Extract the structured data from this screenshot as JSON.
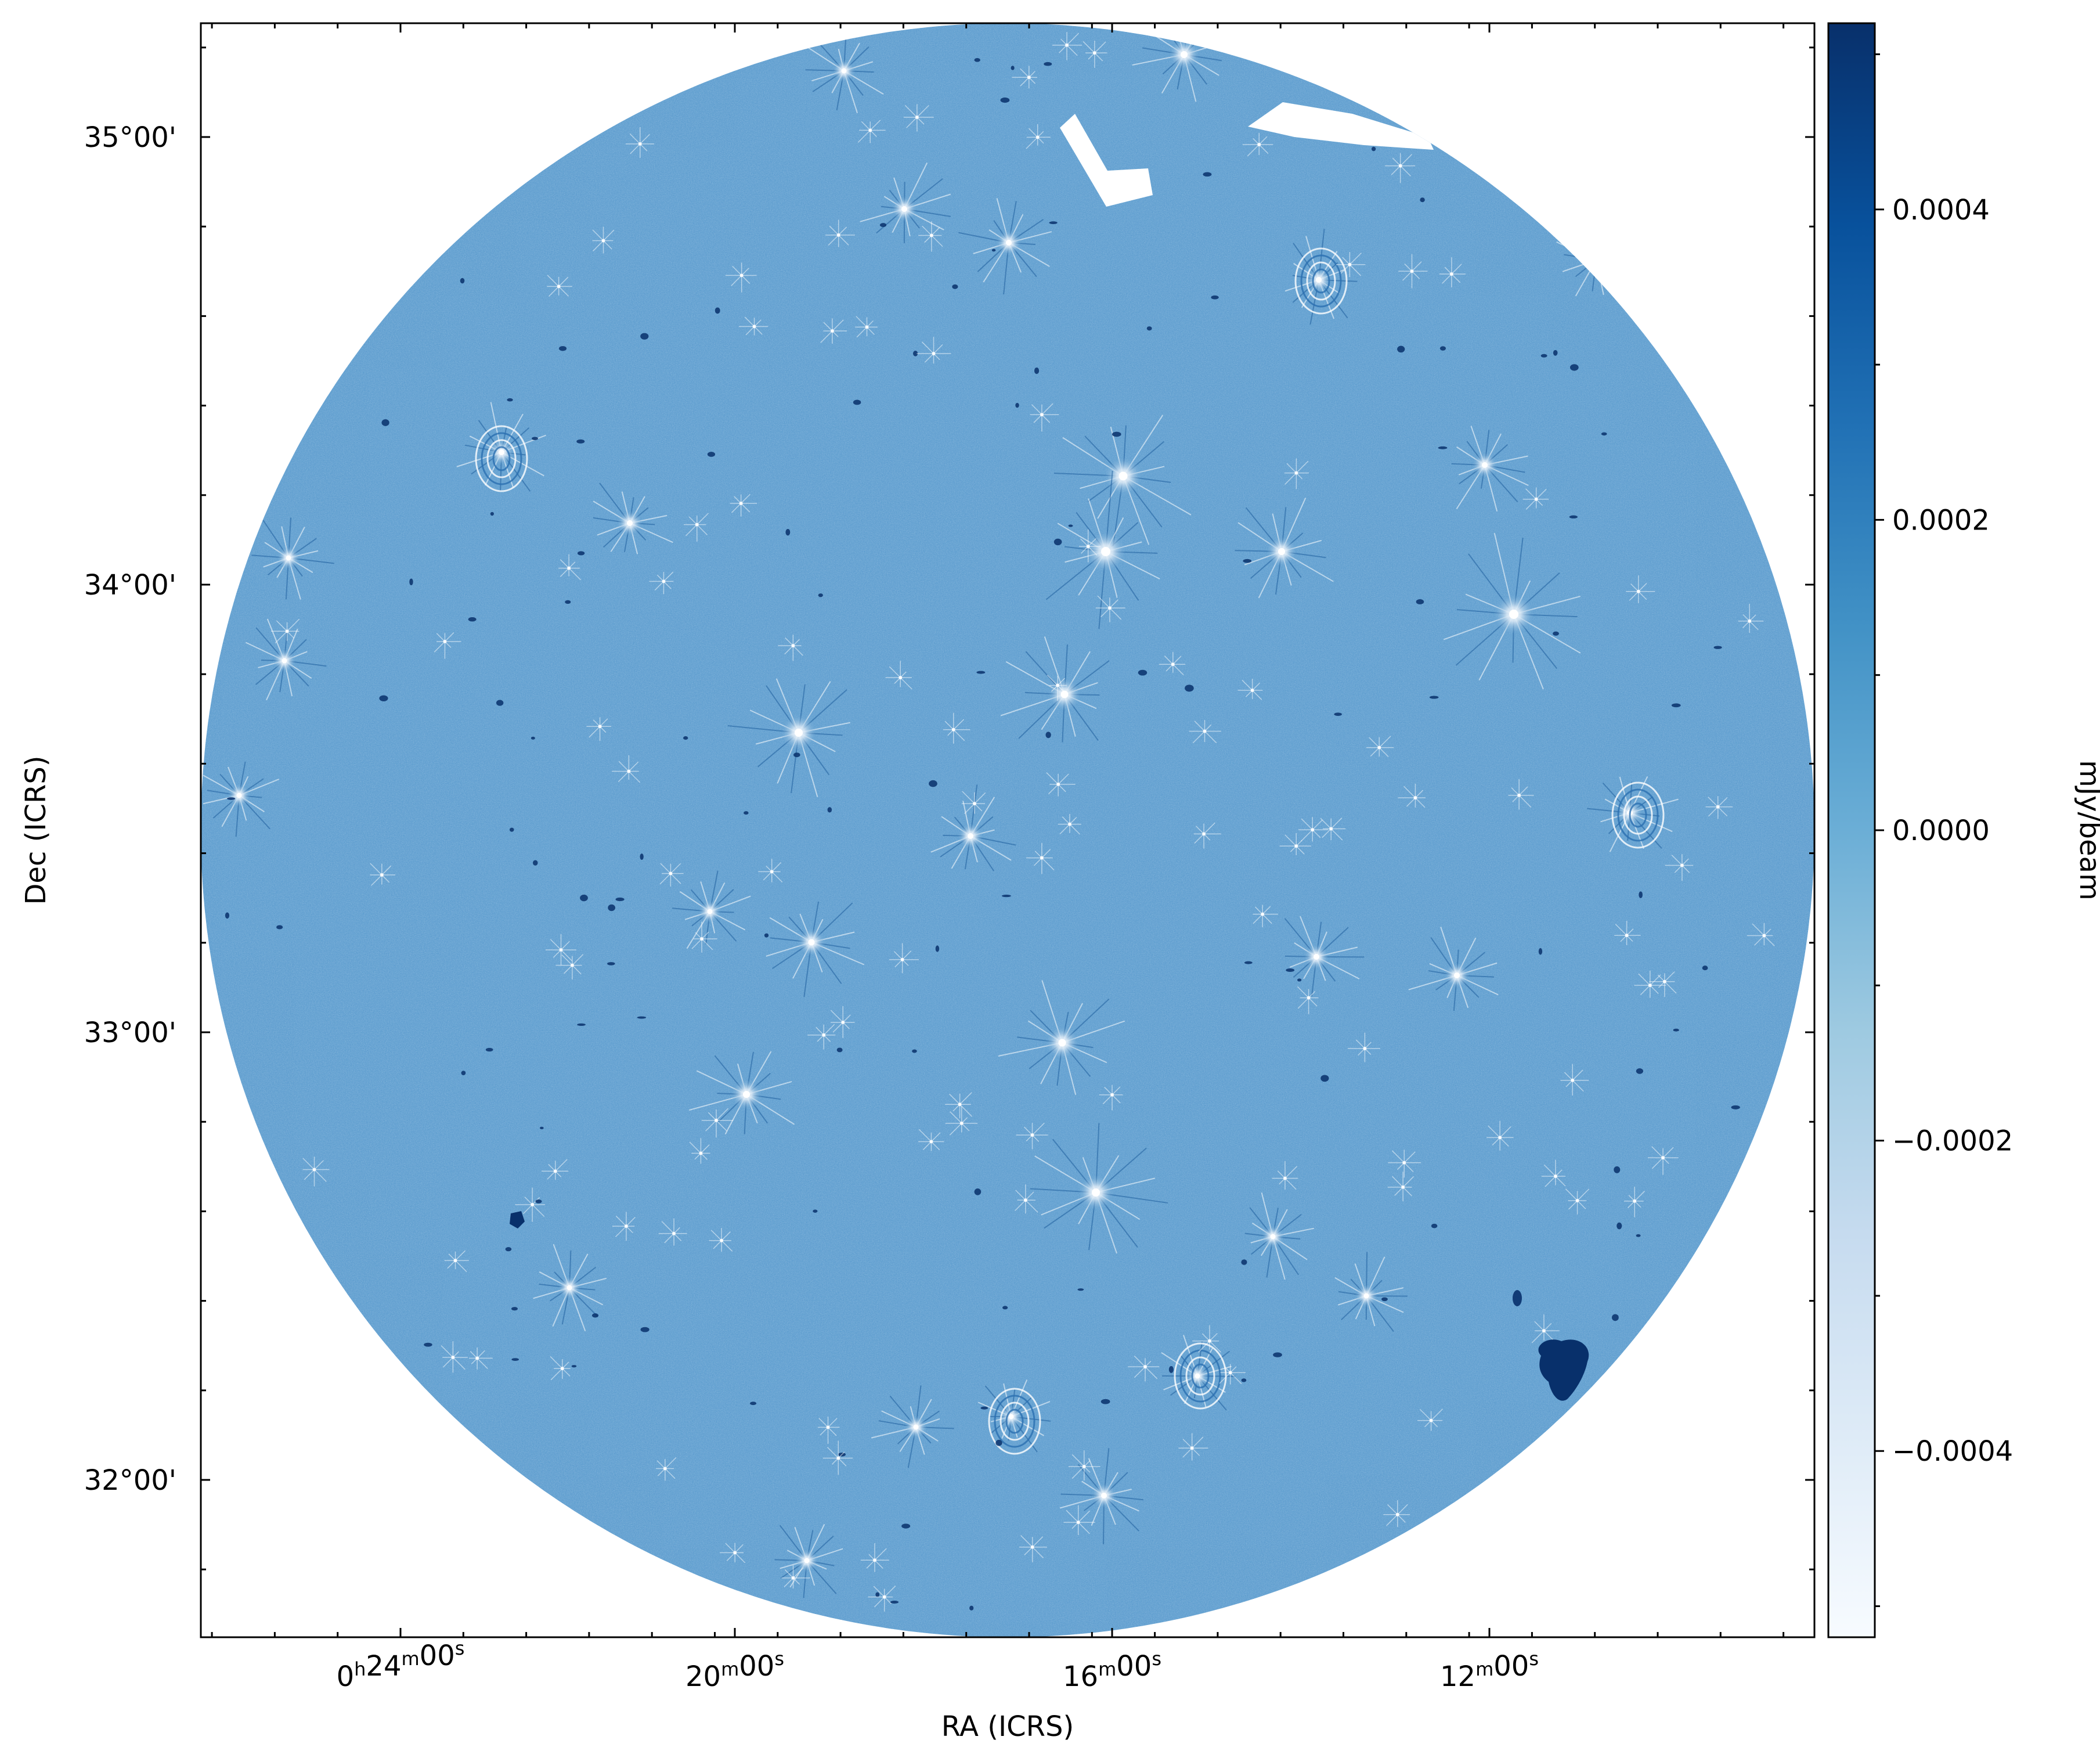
{
  "image": {
    "type": "radio-continuum-sky-map",
    "colormap": "Blues",
    "colormap_stops": [
      "#f7fbff",
      "#deebf7",
      "#c6dbef",
      "#9ecae1",
      "#6baed6",
      "#4292c6",
      "#2171b5",
      "#08519c",
      "#08306b"
    ],
    "background_color": "#6aa5d3",
    "blank_color": "#ffffff",
    "source_features": [
      "point-source",
      "artifact-spike",
      "extended-source",
      "masked-region"
    ]
  },
  "axes": {
    "xlabel": "RA (ICRS)",
    "ylabel": "Dec (ICRS)",
    "x_ticks": [
      {
        "h": "0",
        "m": "24",
        "s": "00"
      },
      {
        "h": "",
        "m": "20",
        "s": "00"
      },
      {
        "h": "",
        "m": "16",
        "s": "00"
      },
      {
        "h": "",
        "m": "12",
        "s": "00"
      }
    ],
    "y_ticks": [
      "35°00'",
      "34°00'",
      "33°00'",
      "32°00'"
    ]
  },
  "colorbar": {
    "label": "mJy/beam",
    "ticks": [
      "0.0004",
      "0.0002",
      "0.0000",
      "−0.0002",
      "−0.0004"
    ],
    "tick_values": [
      0.0004,
      0.0002,
      0.0,
      -0.0002,
      -0.0004
    ],
    "vmin": -0.00052,
    "vmax": 0.00052
  }
}
